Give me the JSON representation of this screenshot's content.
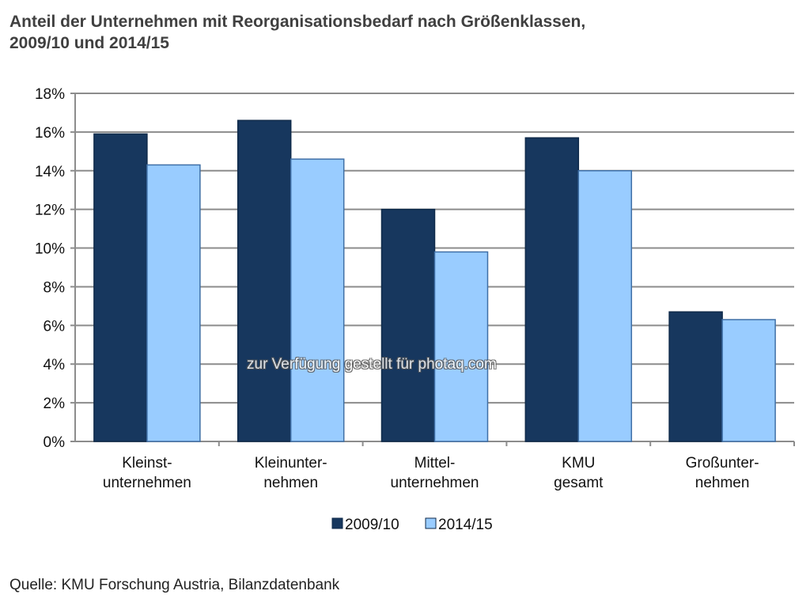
{
  "title_line1": "Anteil der Unternehmen mit Reorganisationsbedarf nach Größenklassen,",
  "title_line2": "2009/10 und 2014/15",
  "source": "Quelle: KMU Forschung Austria, Bilanzdatenbank",
  "watermark": "zur Verfügung gestellt für photaq.com",
  "chart_data": {
    "type": "bar",
    "title": "Anteil der Unternehmen mit Reorganisationsbedarf nach Größenklassen, 2009/10 und 2014/15",
    "categories": [
      [
        "Kleinst-",
        "unternehmen"
      ],
      [
        "Kleinunter-",
        "nehmen"
      ],
      [
        "Mittel-",
        "unternehmen"
      ],
      [
        "KMU",
        "gesamt"
      ],
      [
        "Großunter-",
        "nehmen"
      ]
    ],
    "series": [
      {
        "name": "2009/10",
        "color": "#17375e",
        "values": [
          15.9,
          16.6,
          12.0,
          15.7,
          6.7
        ]
      },
      {
        "name": "2014/15",
        "color": "#99ccff",
        "values": [
          14.3,
          14.6,
          9.8,
          14.0,
          6.3
        ]
      }
    ],
    "yticks": [
      "0%",
      "2%",
      "4%",
      "6%",
      "8%",
      "10%",
      "12%",
      "14%",
      "16%",
      "18%"
    ],
    "ylim": [
      0,
      18
    ],
    "ylabel": "",
    "xlabel": "",
    "grid": true,
    "legend": "bottom-center"
  }
}
